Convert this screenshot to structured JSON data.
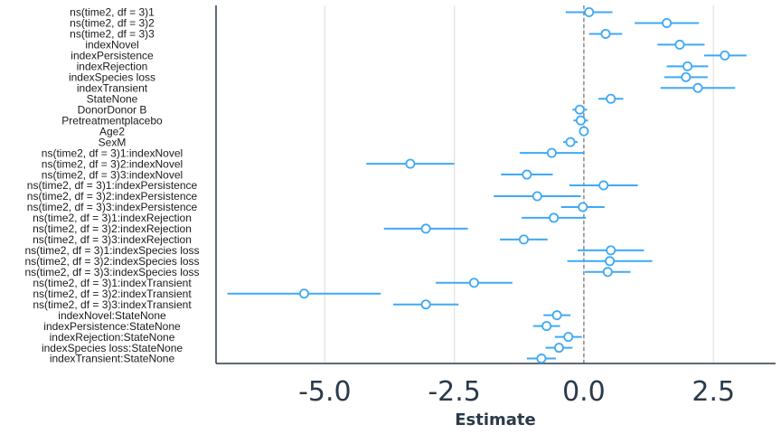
{
  "chart_data": {
    "type": "scatter",
    "subtype": "coefficient-plot",
    "title": "",
    "xlabel": "Estimate",
    "ylabel": "",
    "xlim": [
      -7.1,
      3.7
    ],
    "xticks": [
      -5.0,
      -2.5,
      0.0,
      2.5
    ],
    "xtick_labels": [
      "-5.0",
      "-2.5",
      "0.0",
      "2.5"
    ],
    "reference_line_x": 0,
    "grid": "vertical-major",
    "colors": {
      "point": "#3fa9f5",
      "axis": "#2b3a4a",
      "grid": "#e3e3e3",
      "refline": "#555555"
    },
    "terms": [
      {
        "label": "ns(time2, df = 3)1",
        "estimate": 0.1,
        "low": -0.35,
        "high": 0.55
      },
      {
        "label": "ns(time2, df = 3)2",
        "estimate": 1.6,
        "low": 0.98,
        "high": 2.22
      },
      {
        "label": "ns(time2, df = 3)3",
        "estimate": 0.42,
        "low": 0.1,
        "high": 0.74
      },
      {
        "label": "indexNovel",
        "estimate": 1.85,
        "low": 1.42,
        "high": 2.33
      },
      {
        "label": "indexPersistence",
        "estimate": 2.72,
        "low": 2.32,
        "high": 3.14
      },
      {
        "label": "indexRejection",
        "estimate": 2.0,
        "low": 1.6,
        "high": 2.4
      },
      {
        "label": "indexSpecies loss",
        "estimate": 1.97,
        "low": 1.55,
        "high": 2.39
      },
      {
        "label": "indexTransient",
        "estimate": 2.2,
        "low": 1.48,
        "high": 2.92
      },
      {
        "label": "StateNone",
        "estimate": 0.52,
        "low": 0.28,
        "high": 0.76
      },
      {
        "label": "DonorDonor B",
        "estimate": -0.08,
        "low": -0.22,
        "high": 0.06
      },
      {
        "label": "Pretreatmentplacebo",
        "estimate": -0.06,
        "low": -0.2,
        "high": 0.08
      },
      {
        "label": "Age2",
        "estimate": 0.0,
        "low": -0.02,
        "high": 0.02
      },
      {
        "label": "SexM",
        "estimate": -0.26,
        "low": -0.4,
        "high": -0.12
      },
      {
        "label": "ns(time2, df = 3)1:indexNovel",
        "estimate": -0.62,
        "low": -1.24,
        "high": 0.0
      },
      {
        "label": "ns(time2, df = 3)2:indexNovel",
        "estimate": -3.35,
        "low": -4.2,
        "high": -2.5
      },
      {
        "label": "ns(time2, df = 3)3:indexNovel",
        "estimate": -1.1,
        "low": -1.6,
        "high": -0.6
      },
      {
        "label": "ns(time2, df = 3)1:indexPersistence",
        "estimate": 0.38,
        "low": -0.28,
        "high": 1.04
      },
      {
        "label": "ns(time2, df = 3)2:indexPersistence",
        "estimate": -0.9,
        "low": -1.74,
        "high": -0.06
      },
      {
        "label": "ns(time2, df = 3)3:indexPersistence",
        "estimate": -0.02,
        "low": -0.44,
        "high": 0.4
      },
      {
        "label": "ns(time2, df = 3)1:indexRejection",
        "estimate": -0.58,
        "low": -1.2,
        "high": 0.04
      },
      {
        "label": "ns(time2, df = 3)2:indexRejection",
        "estimate": -3.05,
        "low": -3.86,
        "high": -2.24
      },
      {
        "label": "ns(time2, df = 3)3:indexRejection",
        "estimate": -1.16,
        "low": -1.62,
        "high": -0.7
      },
      {
        "label": "ns(time2, df = 3)1:indexSpecies loss",
        "estimate": 0.52,
        "low": -0.12,
        "high": 1.16
      },
      {
        "label": "ns(time2, df = 3)2:indexSpecies loss",
        "estimate": 0.5,
        "low": -0.32,
        "high": 1.32
      },
      {
        "label": "ns(time2, df = 3)3:indexSpecies loss",
        "estimate": 0.46,
        "low": 0.02,
        "high": 0.9
      },
      {
        "label": "ns(time2, df = 3)1:indexTransient",
        "estimate": -2.12,
        "low": -2.86,
        "high": -1.38
      },
      {
        "label": "ns(time2, df = 3)2:indexTransient",
        "estimate": -5.4,
        "low": -6.88,
        "high": -3.92
      },
      {
        "label": "ns(time2, df = 3)3:indexTransient",
        "estimate": -3.05,
        "low": -3.68,
        "high": -2.42
      },
      {
        "label": "indexNovel:StateNone",
        "estimate": -0.52,
        "low": -0.78,
        "high": -0.26
      },
      {
        "label": "indexPersistence:StateNone",
        "estimate": -0.72,
        "low": -0.98,
        "high": -0.46
      },
      {
        "label": "indexRejection:StateNone",
        "estimate": -0.3,
        "low": -0.56,
        "high": -0.04
      },
      {
        "label": "indexSpecies loss:StateNone",
        "estimate": -0.48,
        "low": -0.74,
        "high": -0.22
      },
      {
        "label": "indexTransient:StateNone",
        "estimate": -0.82,
        "low": -1.1,
        "high": -0.54
      }
    ]
  }
}
